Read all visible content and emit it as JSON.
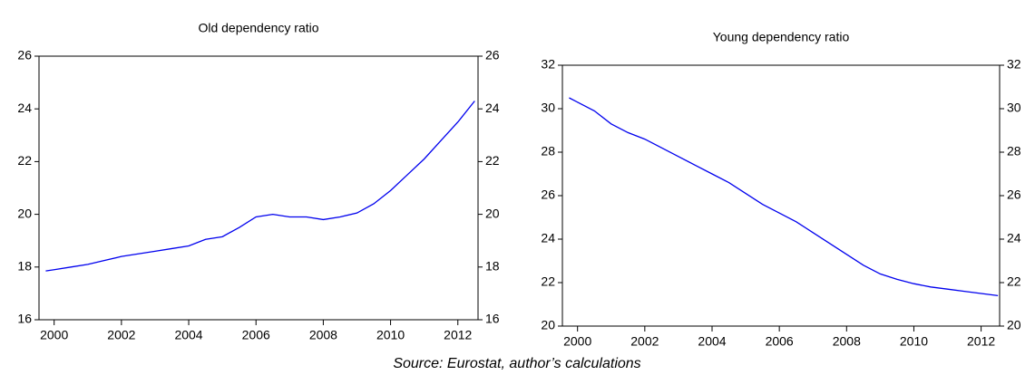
{
  "chart_data": [
    {
      "type": "line",
      "title": "Old dependency ratio",
      "x": [
        1999.75,
        2000,
        2000.5,
        2001,
        2001.5,
        2002,
        2002.5,
        2003,
        2003.5,
        2004,
        2004.5,
        2005,
        2005.5,
        2006,
        2006.5,
        2007,
        2007.5,
        2008,
        2008.5,
        2009,
        2009.5,
        2010,
        2010.5,
        2011,
        2011.5,
        2012,
        2012.5
      ],
      "series": [
        {
          "color": "#0000ee",
          "values": [
            17.85,
            17.9,
            18.0,
            18.1,
            18.25,
            18.4,
            18.5,
            18.6,
            18.7,
            18.8,
            19.05,
            19.15,
            19.5,
            19.9,
            20.0,
            19.9,
            19.9,
            19.8,
            19.9,
            20.05,
            20.4,
            20.9,
            21.5,
            22.1,
            22.8,
            23.5,
            24.3
          ]
        }
      ],
      "xlim": [
        1999.55,
        2012.6
      ],
      "xticks": [
        2000,
        2002,
        2004,
        2006,
        2008,
        2010,
        2012
      ],
      "ylim": [
        16,
        26
      ],
      "yticks": [
        16,
        18,
        20,
        22,
        24,
        26
      ],
      "mirror_y": true
    },
    {
      "type": "line",
      "title": "Young dependency ratio",
      "x": [
        1999.75,
        2000,
        2000.5,
        2001,
        2001.5,
        2002,
        2002.5,
        2003,
        2003.5,
        2004,
        2004.5,
        2005,
        2005.5,
        2006,
        2006.5,
        2007,
        2007.5,
        2008,
        2008.5,
        2009,
        2009.5,
        2010,
        2010.5,
        2011,
        2011.5,
        2012,
        2012.5
      ],
      "series": [
        {
          "color": "#0000ee",
          "values": [
            30.5,
            30.3,
            29.9,
            29.3,
            28.9,
            28.6,
            28.2,
            27.8,
            27.4,
            27.0,
            26.6,
            26.1,
            25.6,
            25.2,
            24.8,
            24.3,
            23.8,
            23.3,
            22.8,
            22.4,
            22.15,
            21.95,
            21.8,
            21.7,
            21.6,
            21.5,
            21.4
          ]
        }
      ],
      "xlim": [
        1999.55,
        2012.55
      ],
      "xticks": [
        2000,
        2002,
        2004,
        2006,
        2008,
        2010,
        2012
      ],
      "ylim": [
        20,
        32
      ],
      "yticks": [
        20,
        22,
        24,
        26,
        28,
        30,
        32
      ],
      "mirror_y": true
    }
  ],
  "source": "Source: Eurostat, author’s calculations"
}
